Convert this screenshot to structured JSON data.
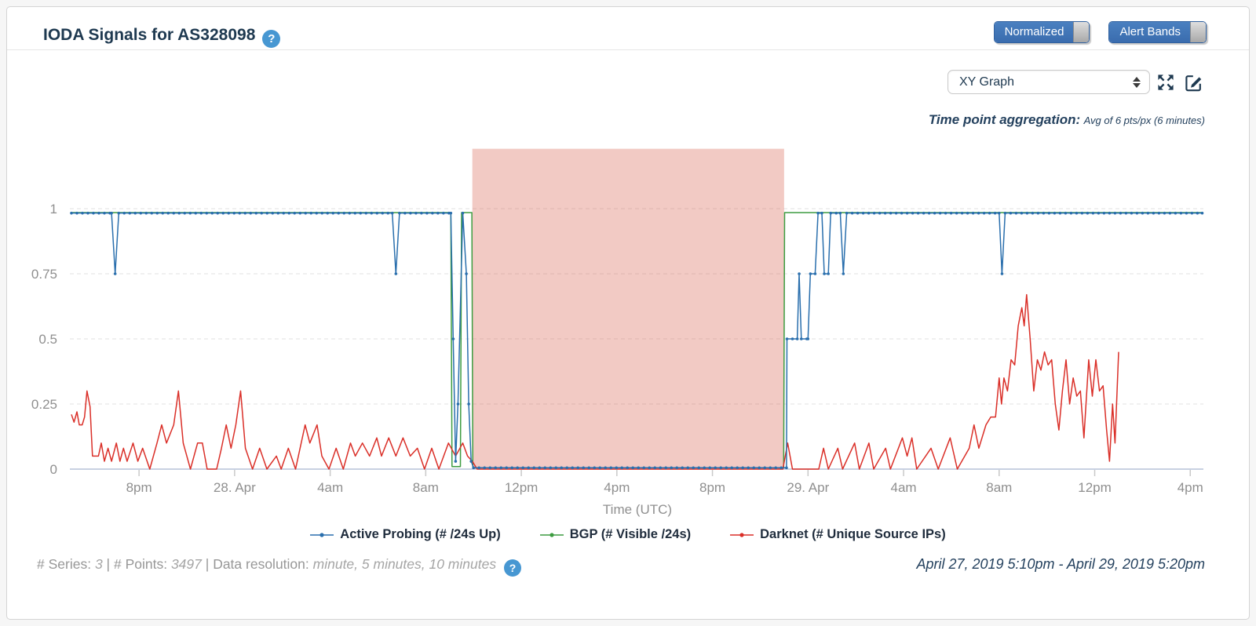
{
  "header": {
    "title": "IODA Signals for AS328098",
    "help_icon": "?",
    "toggles": [
      {
        "label": "Normalized",
        "state": "on"
      },
      {
        "label": "Alert Bands",
        "state": "on"
      }
    ]
  },
  "controls": {
    "graph_type_select": {
      "value": "XY Graph"
    },
    "aggregation_label": "Time point aggregation:",
    "aggregation_value": "Avg of 6 pts/px (6 minutes)"
  },
  "icons": {
    "help": "question-mark-circle",
    "fullscreen": "expand-arrows",
    "edit": "pencil-square",
    "select_spinner": "up-down-arrows"
  },
  "footer": {
    "series_label": "# Series:",
    "series_value": "3",
    "sep1": "|",
    "points_label": "# Points:",
    "points_value": "3497",
    "sep2": "|",
    "resolution_label": "Data resolution:",
    "resolution_value": "minute, 5 minutes, 10 minutes",
    "help_icon": "?",
    "date_range": "April 27, 2019 5:10pm - April 29, 2019 5:20pm"
  },
  "chart_data": {
    "type": "line",
    "title": "IODA Signals for AS328098",
    "xlabel": "Time (UTC)",
    "ylabel": "",
    "x_unit": "hours since 2019-04-27 00:00 UTC",
    "xlim": [
      17.17,
      64.55
    ],
    "ylim": [
      0,
      1.23
    ],
    "grid": "dashed-horizontal",
    "legend_position": "bottom-center",
    "yticks": [
      0,
      0.25,
      0.5,
      0.75,
      1
    ],
    "xticks": [
      {
        "x": 20,
        "label": "8pm"
      },
      {
        "x": 24,
        "label": "28. Apr"
      },
      {
        "x": 28,
        "label": "4am"
      },
      {
        "x": 32,
        "label": "8am"
      },
      {
        "x": 36,
        "label": "12pm"
      },
      {
        "x": 40,
        "label": "4pm"
      },
      {
        "x": 44,
        "label": "8pm"
      },
      {
        "x": 48,
        "label": "29. Apr"
      },
      {
        "x": 52,
        "label": "4am"
      },
      {
        "x": 56,
        "label": "8am"
      },
      {
        "x": 60,
        "label": "12pm"
      },
      {
        "x": 64,
        "label": "4pm"
      }
    ],
    "alert_band": {
      "x1": 33.95,
      "x2": 47.0,
      "ymax": 1.23,
      "color": "rgba(214,91,71,0.32)"
    },
    "series": [
      {
        "name": "Active Probing (# /24s Up)",
        "color": "#2a6fad",
        "marker": true,
        "points": [
          [
            17.17,
            0.983
          ],
          [
            18.85,
            0.983
          ],
          [
            19.0,
            0.75
          ],
          [
            19.15,
            0.983
          ],
          [
            30.6,
            0.983
          ],
          [
            30.75,
            0.75
          ],
          [
            30.9,
            0.983
          ],
          [
            33.05,
            0.983
          ],
          [
            33.15,
            0.5
          ],
          [
            33.25,
            0.03
          ],
          [
            33.35,
            0.25
          ],
          [
            33.55,
            0.983
          ],
          [
            33.7,
            0.75
          ],
          [
            33.8,
            0.25
          ],
          [
            33.9,
            0.03
          ],
          [
            34.0,
            0.005
          ],
          [
            47.1,
            0.005
          ],
          [
            47.12,
            0.5
          ],
          [
            47.55,
            0.5
          ],
          [
            47.63,
            0.75
          ],
          [
            47.72,
            0.5
          ],
          [
            48.0,
            0.5
          ],
          [
            48.1,
            0.75
          ],
          [
            48.3,
            0.75
          ],
          [
            48.42,
            0.983
          ],
          [
            48.58,
            0.983
          ],
          [
            48.68,
            0.75
          ],
          [
            48.85,
            0.75
          ],
          [
            48.95,
            0.983
          ],
          [
            49.35,
            0.983
          ],
          [
            49.48,
            0.75
          ],
          [
            49.62,
            0.983
          ],
          [
            56.0,
            0.983
          ],
          [
            56.12,
            0.75
          ],
          [
            56.25,
            0.983
          ],
          [
            64.5,
            0.983
          ]
        ]
      },
      {
        "name": "BGP (# Visible /24s)",
        "color": "#3d9c40",
        "marker": false,
        "points": [
          [
            17.17,
            0.985
          ],
          [
            33.05,
            0.985
          ],
          [
            33.1,
            0.01
          ],
          [
            33.45,
            0.01
          ],
          [
            33.5,
            0.985
          ],
          [
            33.93,
            0.985
          ],
          [
            33.97,
            0.005
          ],
          [
            46.98,
            0.005
          ],
          [
            47.02,
            0.985
          ],
          [
            64.5,
            0.985
          ]
        ]
      },
      {
        "name": "Darknet (# Unique Source IPs)",
        "color": "#da2f28",
        "marker": false,
        "points": [
          [
            17.17,
            0.21
          ],
          [
            17.28,
            0.18
          ],
          [
            17.4,
            0.22
          ],
          [
            17.5,
            0.17
          ],
          [
            17.62,
            0.17
          ],
          [
            17.72,
            0.2
          ],
          [
            17.82,
            0.3
          ],
          [
            17.95,
            0.24
          ],
          [
            18.05,
            0.05
          ],
          [
            18.3,
            0.05
          ],
          [
            18.42,
            0.1
          ],
          [
            18.55,
            0.03
          ],
          [
            18.7,
            0.08
          ],
          [
            18.85,
            0.03
          ],
          [
            19.05,
            0.1
          ],
          [
            19.2,
            0.03
          ],
          [
            19.35,
            0.08
          ],
          [
            19.5,
            0.03
          ],
          [
            19.75,
            0.1
          ],
          [
            19.95,
            0.03
          ],
          [
            20.15,
            0.08
          ],
          [
            20.45,
            0
          ],
          [
            20.75,
            0.1
          ],
          [
            20.95,
            0.17
          ],
          [
            21.15,
            0.1
          ],
          [
            21.45,
            0.17
          ],
          [
            21.65,
            0.3
          ],
          [
            21.85,
            0.1
          ],
          [
            22.15,
            0
          ],
          [
            22.45,
            0.1
          ],
          [
            22.65,
            0.1
          ],
          [
            22.85,
            0
          ],
          [
            23.25,
            0
          ],
          [
            23.45,
            0.08
          ],
          [
            23.65,
            0.17
          ],
          [
            23.85,
            0.08
          ],
          [
            24.05,
            0.17
          ],
          [
            24.25,
            0.3
          ],
          [
            24.45,
            0.08
          ],
          [
            24.75,
            0
          ],
          [
            25.05,
            0.08
          ],
          [
            25.35,
            0
          ],
          [
            25.75,
            0.05
          ],
          [
            25.95,
            0
          ],
          [
            26.25,
            0.08
          ],
          [
            26.55,
            0
          ],
          [
            26.95,
            0.17
          ],
          [
            27.15,
            0.1
          ],
          [
            27.45,
            0.17
          ],
          [
            27.65,
            0.05
          ],
          [
            27.95,
            0
          ],
          [
            28.25,
            0.08
          ],
          [
            28.55,
            0
          ],
          [
            28.85,
            0.1
          ],
          [
            29.05,
            0.05
          ],
          [
            29.35,
            0.1
          ],
          [
            29.65,
            0.05
          ],
          [
            29.95,
            0.12
          ],
          [
            30.15,
            0.05
          ],
          [
            30.45,
            0.12
          ],
          [
            30.75,
            0.05
          ],
          [
            31.05,
            0.12
          ],
          [
            31.35,
            0.05
          ],
          [
            31.65,
            0.08
          ],
          [
            31.95,
            0
          ],
          [
            32.25,
            0.08
          ],
          [
            32.55,
            0
          ],
          [
            32.95,
            0.1
          ],
          [
            33.25,
            0.05
          ],
          [
            33.55,
            0.1
          ],
          [
            33.75,
            0.05
          ],
          [
            33.95,
            0.03
          ],
          [
            34.15,
            0
          ],
          [
            46.95,
            0
          ],
          [
            47.15,
            0.1
          ],
          [
            47.35,
            0
          ],
          [
            48.45,
            0
          ],
          [
            48.65,
            0.08
          ],
          [
            48.85,
            0
          ],
          [
            49.25,
            0.08
          ],
          [
            49.45,
            0
          ],
          [
            49.95,
            0.1
          ],
          [
            50.15,
            0
          ],
          [
            50.55,
            0.1
          ],
          [
            50.75,
            0
          ],
          [
            51.25,
            0.08
          ],
          [
            51.45,
            0
          ],
          [
            51.95,
            0.12
          ],
          [
            52.15,
            0.05
          ],
          [
            52.35,
            0.12
          ],
          [
            52.55,
            0
          ],
          [
            53.15,
            0.08
          ],
          [
            53.45,
            0
          ],
          [
            53.95,
            0.12
          ],
          [
            54.25,
            0
          ],
          [
            54.75,
            0.08
          ],
          [
            54.95,
            0.17
          ],
          [
            55.15,
            0.08
          ],
          [
            55.45,
            0.17
          ],
          [
            55.65,
            0.2
          ],
          [
            55.85,
            0.2
          ],
          [
            56.0,
            0.35
          ],
          [
            56.1,
            0.25
          ],
          [
            56.2,
            0.35
          ],
          [
            56.35,
            0.3
          ],
          [
            56.5,
            0.42
          ],
          [
            56.65,
            0.4
          ],
          [
            56.8,
            0.55
          ],
          [
            56.95,
            0.62
          ],
          [
            57.05,
            0.55
          ],
          [
            57.15,
            0.67
          ],
          [
            57.3,
            0.5
          ],
          [
            57.45,
            0.3
          ],
          [
            57.6,
            0.42
          ],
          [
            57.75,
            0.38
          ],
          [
            57.9,
            0.45
          ],
          [
            58.05,
            0.4
          ],
          [
            58.2,
            0.42
          ],
          [
            58.35,
            0.25
          ],
          [
            58.5,
            0.15
          ],
          [
            58.65,
            0.3
          ],
          [
            58.8,
            0.42
          ],
          [
            58.95,
            0.25
          ],
          [
            59.1,
            0.35
          ],
          [
            59.25,
            0.28
          ],
          [
            59.4,
            0.3
          ],
          [
            59.55,
            0.12
          ],
          [
            59.75,
            0.42
          ],
          [
            59.9,
            0.28
          ],
          [
            60.05,
            0.42
          ],
          [
            60.2,
            0.3
          ],
          [
            60.35,
            0.32
          ],
          [
            60.5,
            0.15
          ],
          [
            60.62,
            0.03
          ],
          [
            60.75,
            0.25
          ],
          [
            60.85,
            0.1
          ],
          [
            61.0,
            0.45
          ]
        ]
      }
    ]
  }
}
